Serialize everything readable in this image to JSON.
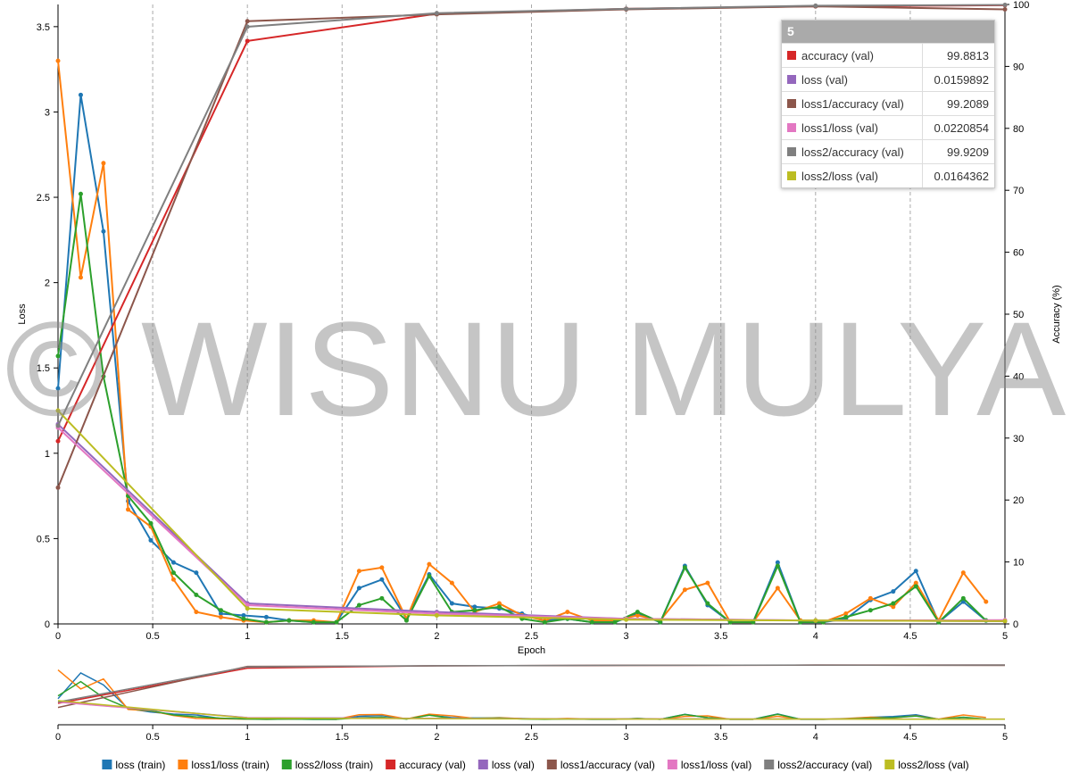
{
  "chart_data": {
    "type": "line",
    "watermark": "© WISNU MULYA",
    "x_label": "Epoch",
    "y_label": "Loss",
    "y2_label": "Accuracy (%)",
    "xlim": [
      0,
      5
    ],
    "xticks": [
      0,
      0.5,
      1,
      1.5,
      2,
      2.5,
      3,
      3.5,
      4,
      4.5,
      5
    ],
    "ylim": [
      0,
      3.63
    ],
    "yticks": [
      0,
      0.5,
      1,
      1.5,
      2,
      2.5,
      3,
      3.5
    ],
    "y2lim": [
      0,
      100
    ],
    "y2ticks": [
      0,
      10,
      20,
      30,
      40,
      50,
      60,
      70,
      80,
      90,
      100
    ],
    "grid": "x",
    "legend_position": "bottom",
    "series": [
      {
        "name": "loss (train)",
        "color": "#1f77b4",
        "x": [
          0,
          0.12,
          0.24,
          0.37,
          0.49,
          0.61,
          0.73,
          0.86,
          0.98,
          1.1,
          1.22,
          1.35,
          1.47,
          1.59,
          1.71,
          1.84,
          1.96,
          2.08,
          2.2,
          2.33,
          2.45,
          2.57,
          2.69,
          2.82,
          2.94,
          3.06,
          3.18,
          3.31,
          3.43,
          3.55,
          3.67,
          3.8,
          3.92,
          4.04,
          4.16,
          4.29,
          4.41,
          4.53,
          4.65,
          4.78,
          4.9
        ],
        "values": [
          1.38,
          3.1,
          2.3,
          0.72,
          0.49,
          0.36,
          0.3,
          0.06,
          0.05,
          0.04,
          0.02,
          0.01,
          0.01,
          0.21,
          0.26,
          0.03,
          0.29,
          0.12,
          0.1,
          0.09,
          0.06,
          0.02,
          0.03,
          0.01,
          0.01,
          0.06,
          0.01,
          0.34,
          0.11,
          0.01,
          0.01,
          0.36,
          0.01,
          0.01,
          0.03,
          0.14,
          0.19,
          0.31,
          0.01,
          0.13,
          0.02
        ]
      },
      {
        "name": "loss1/loss (train)",
        "color": "#ff7f0e",
        "x": [
          0,
          0.12,
          0.24,
          0.37,
          0.49,
          0.61,
          0.73,
          0.86,
          0.98,
          1.1,
          1.22,
          1.35,
          1.47,
          1.59,
          1.71,
          1.84,
          1.96,
          2.08,
          2.2,
          2.33,
          2.45,
          2.57,
          2.69,
          2.82,
          2.94,
          3.06,
          3.18,
          3.31,
          3.43,
          3.55,
          3.67,
          3.8,
          3.92,
          4.04,
          4.16,
          4.29,
          4.41,
          4.53,
          4.65,
          4.78,
          4.9
        ],
        "values": [
          3.3,
          2.03,
          2.7,
          0.67,
          0.57,
          0.26,
          0.07,
          0.04,
          0.02,
          0.01,
          0.02,
          0.02,
          0.01,
          0.31,
          0.33,
          0.03,
          0.35,
          0.24,
          0.07,
          0.12,
          0.05,
          0.02,
          0.07,
          0.02,
          0.02,
          0.05,
          0.02,
          0.2,
          0.24,
          0.01,
          0.01,
          0.21,
          0.02,
          0.01,
          0.06,
          0.15,
          0.1,
          0.24,
          0.02,
          0.3,
          0.13
        ]
      },
      {
        "name": "loss2/loss (train)",
        "color": "#2ca02c",
        "x": [
          0,
          0.12,
          0.24,
          0.37,
          0.49,
          0.61,
          0.73,
          0.86,
          0.98,
          1.1,
          1.22,
          1.35,
          1.47,
          1.59,
          1.71,
          1.84,
          1.96,
          2.08,
          2.2,
          2.33,
          2.45,
          2.57,
          2.69,
          2.82,
          2.94,
          3.06,
          3.18,
          3.31,
          3.43,
          3.55,
          3.67,
          3.8,
          3.92,
          4.04,
          4.16,
          4.29,
          4.41,
          4.53,
          4.65,
          4.78,
          4.9
        ],
        "values": [
          1.57,
          2.52,
          1.45,
          0.75,
          0.59,
          0.3,
          0.17,
          0.08,
          0.03,
          0.01,
          0.02,
          0.01,
          0.01,
          0.11,
          0.15,
          0.02,
          0.28,
          0.07,
          0.08,
          0.1,
          0.03,
          0.01,
          0.03,
          0.01,
          0.01,
          0.07,
          0.01,
          0.33,
          0.12,
          0.01,
          0.01,
          0.34,
          0.01,
          0.01,
          0.04,
          0.08,
          0.12,
          0.22,
          0.01,
          0.15,
          0.02
        ]
      },
      {
        "name": "accuracy (val)",
        "color": "#d62728",
        "axis": "y2",
        "x": [
          0,
          1,
          2,
          3,
          4,
          5
        ],
        "values": [
          29.5,
          94.1,
          98.5,
          99.3,
          99.7,
          99.8813
        ]
      },
      {
        "name": "loss (val)",
        "color": "#9467bd",
        "x": [
          0,
          1,
          2,
          3,
          4,
          5
        ],
        "values": [
          1.17,
          0.12,
          0.07,
          0.03,
          0.02,
          0.0159892
        ]
      },
      {
        "name": "loss1/accuracy (val)",
        "color": "#8c564b",
        "axis": "y2",
        "x": [
          0,
          1,
          2,
          3,
          4,
          5
        ],
        "values": [
          22,
          97.3,
          98.4,
          99.2,
          99.7,
          99.2089
        ]
      },
      {
        "name": "loss1/loss (val)",
        "color": "#e377c2",
        "x": [
          0,
          1,
          2,
          3,
          4,
          5
        ],
        "values": [
          1.15,
          0.11,
          0.06,
          0.03,
          0.02,
          0.0220854
        ]
      },
      {
        "name": "loss2/accuracy (val)",
        "color": "#7f7f7f",
        "axis": "y2",
        "x": [
          0,
          1,
          2,
          3,
          4,
          5
        ],
        "values": [
          32,
          96.4,
          98.6,
          99.3,
          99.8,
          99.9209
        ]
      },
      {
        "name": "loss2/loss (val)",
        "color": "#bcbd22",
        "x": [
          0,
          1,
          2,
          3,
          4,
          5
        ],
        "values": [
          1.25,
          0.09,
          0.05,
          0.025,
          0.02,
          0.0164362
        ]
      }
    ]
  }
}
